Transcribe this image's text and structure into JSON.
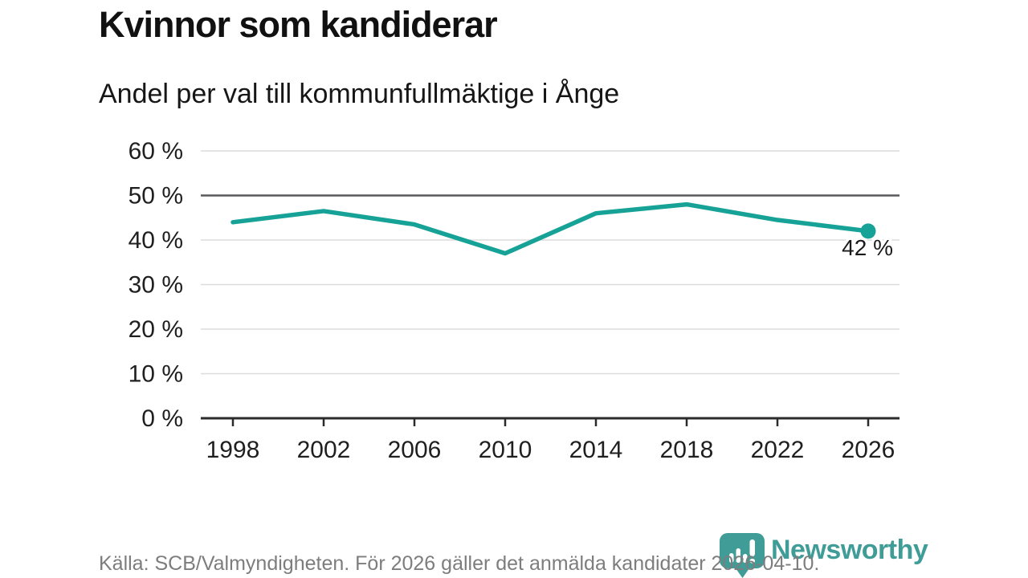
{
  "header": {
    "title": "Kvinnor som kandiderar",
    "subtitle": "Andel per val till kommunfullmäktige i Ånge"
  },
  "chart_data": {
    "type": "line",
    "title": "Kvinnor som kandiderar",
    "subtitle": "Andel per val till kommunfullmäktige i Ånge",
    "categories": [
      "1998",
      "2002",
      "2006",
      "2010",
      "2014",
      "2018",
      "2022",
      "2026"
    ],
    "values": [
      44,
      46.5,
      43.5,
      37,
      46,
      48,
      44.5,
      42
    ],
    "xlabel": "",
    "ylabel": "",
    "ylim": [
      0,
      60
    ],
    "ytick_step": 10,
    "ytick_suffix": " %",
    "grid": "horizontal",
    "emphasized_gridline": 50,
    "legend": "none",
    "last_point_marker": true,
    "annotation": {
      "text": "42 %",
      "year": "2026",
      "value": 42
    }
  },
  "footer": {
    "source": "Källa: SCB/Valmyndigheten. För 2026 gäller det anmälda kandidater 2026-04-10.",
    "logo_text": "Newsworthy"
  },
  "colors": {
    "line": "#16a296",
    "marker": "#16a296",
    "grid": "#dcdcdc",
    "grid_emphasis": "#59595b",
    "axis": "#2b2b2b",
    "tick_label": "#1f1f1f",
    "annotation": "#1a1a1a",
    "logo": "#3f9c97"
  }
}
